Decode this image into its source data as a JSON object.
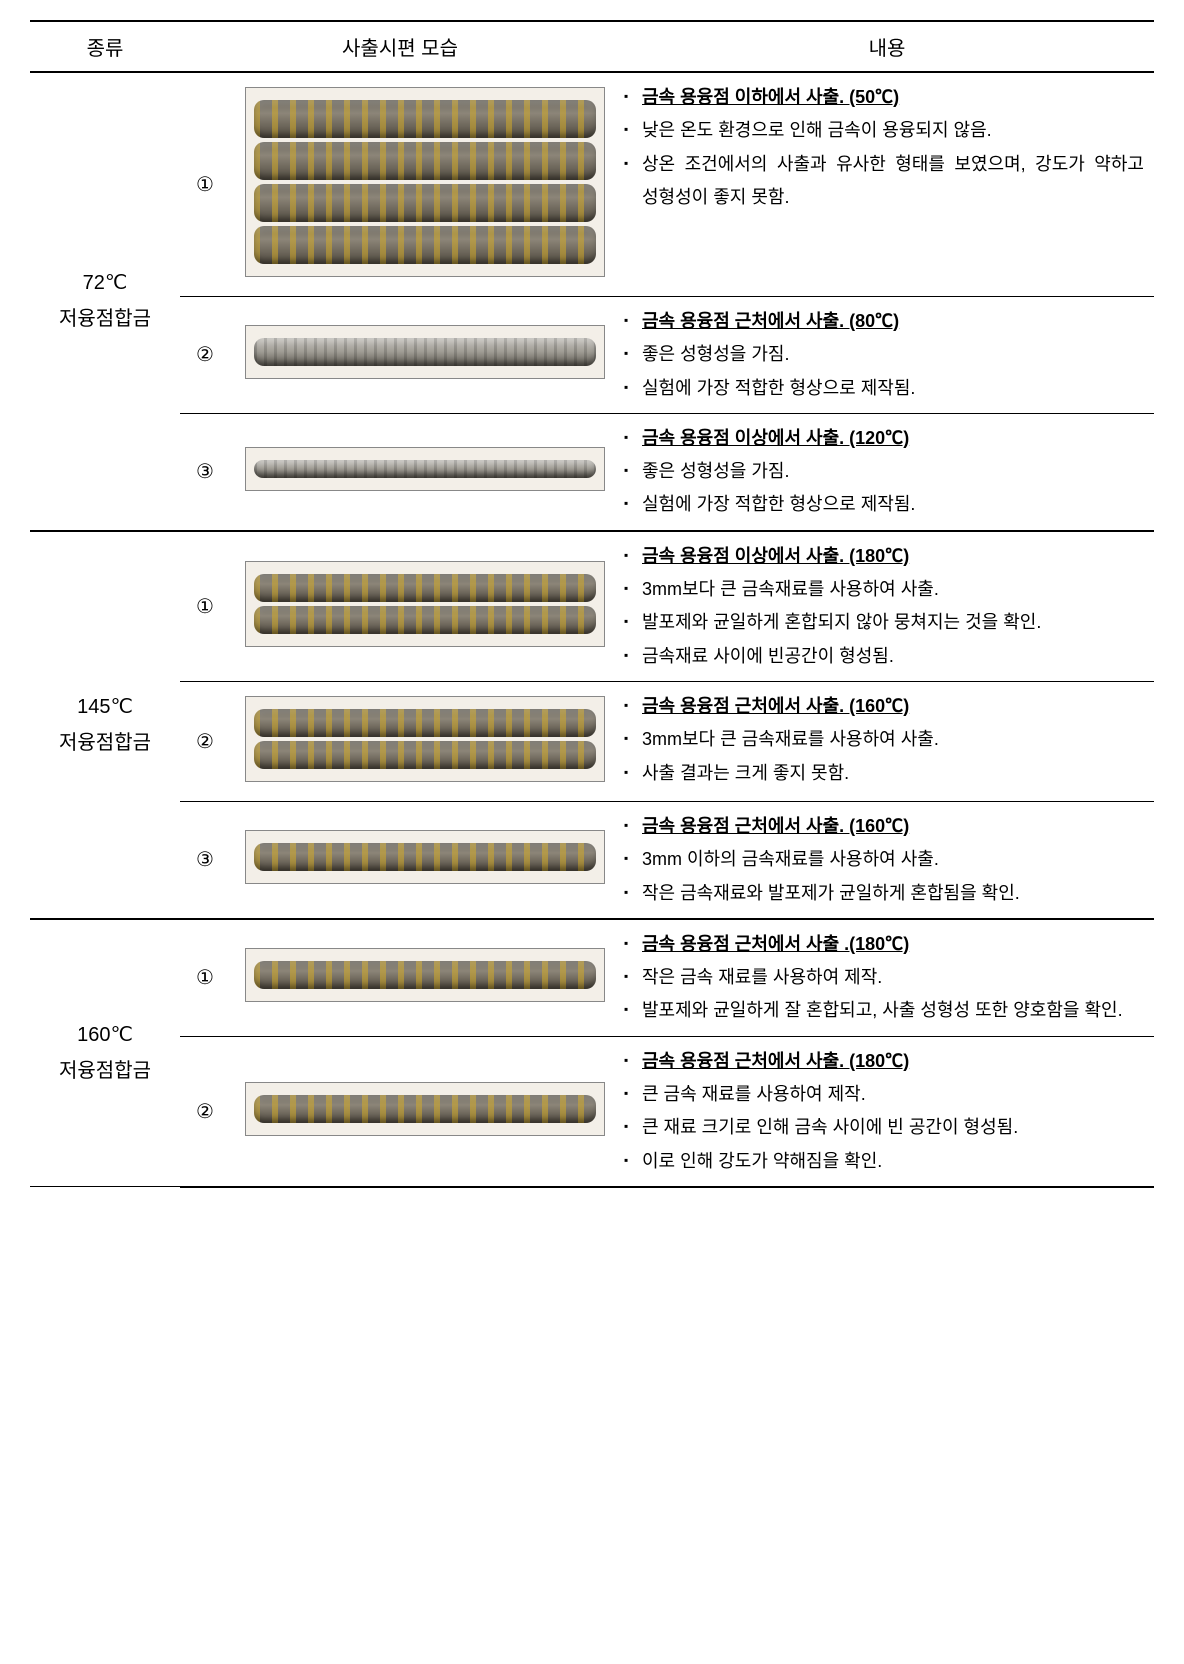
{
  "columns": {
    "c1": "종류",
    "c2c3": "사출시편 모습",
    "c4": "내용"
  },
  "groups": [
    {
      "category": "72℃\n저융점합금",
      "rows": [
        {
          "num": "①",
          "spec_style": "rough4",
          "desc": [
            {
              "type": "head",
              "text": "금속 용융점 이하에서 사출. (50℃)"
            },
            {
              "type": "plain",
              "text": "낮은 온도 환경으로 인해 금속이 용융되지 않음."
            },
            {
              "type": "plain",
              "text": "상온 조건에서의 사출과 유사한 형태를 보였으며, 강도가 약하고 성형성이 좋지 못함."
            }
          ]
        },
        {
          "num": "②",
          "spec_style": "silver1",
          "desc": [
            {
              "type": "head",
              "text": "금속 용융점 근처에서 사출. (80℃)"
            },
            {
              "type": "plain",
              "text": "좋은 성형성을 가짐."
            },
            {
              "type": "plain",
              "text": "실험에 가장 적합한 형상으로 제작됨."
            }
          ]
        },
        {
          "num": "③",
          "spec_style": "silver1thin",
          "desc": [
            {
              "type": "head",
              "text": "금속 용융점 이상에서 사출. (120℃)"
            },
            {
              "type": "plain",
              "text": "좋은 성형성을 가짐."
            },
            {
              "type": "plain",
              "text": "실험에 가장 적합한 형상으로 제작됨."
            }
          ]
        }
      ]
    },
    {
      "category": "145℃\n저융점합금",
      "rows": [
        {
          "num": "①",
          "spec_style": "mixed2",
          "desc": [
            {
              "type": "head",
              "text": "금속 용융점 이상에서 사출. (180℃)"
            },
            {
              "type": "plain",
              "text": "3mm보다 큰 금속재료를 사용하여 사출."
            },
            {
              "type": "plain",
              "text": "발포제와 균일하게 혼합되지 않아 뭉쳐지는 것을 확인."
            },
            {
              "type": "plain",
              "text": "금속재료 사이에 빈공간이 형성됨."
            }
          ]
        },
        {
          "num": "②",
          "spec_style": "mixed2",
          "desc": [
            {
              "type": "head",
              "text": "금속 용융점 근처에서 사출. (160℃)"
            },
            {
              "type": "plain",
              "text": "3mm보다 큰 금속재료를 사용하여 사출."
            },
            {
              "type": "plain",
              "text": "사출 결과는 크게 좋지 못함."
            }
          ]
        },
        {
          "num": "③",
          "spec_style": "mixed1",
          "desc": [
            {
              "type": "head",
              "text": "금속 용융점 근처에서 사출. (160℃)"
            },
            {
              "type": "plain",
              "text": "3mm 이하의 금속재료를 사용하여 사출."
            },
            {
              "type": "plain",
              "text": "작은 금속재료와 발포제가 균일하게 혼합됨을 확인."
            }
          ]
        }
      ]
    },
    {
      "category": "160℃\n저융점합금",
      "rows": [
        {
          "num": "①",
          "spec_style": "mixed1",
          "desc": [
            {
              "type": "head",
              "text": "금속 용융점 근처에서 사출 .(180℃)"
            },
            {
              "type": "plain",
              "text": "작은 금속 재료를 사용하여 제작."
            },
            {
              "type": "plain",
              "text": "발포제와 균일하게 잘 혼합되고, 사출 성형성 또한 양호함을 확인."
            }
          ]
        },
        {
          "num": "②",
          "spec_style": "mixed1void",
          "desc": [
            {
              "type": "head",
              "text": "금속 용융점 근처에서 사출. (180℃)"
            },
            {
              "type": "plain",
              "text": "큰 금속 재료를 사용하여 제작."
            },
            {
              "type": "plain",
              "text": "큰 재료 크기로 인해 금속 사이에 빈 공간이 형성됨."
            },
            {
              "type": "plain",
              "text": "이로 인해 강도가 약해짐을 확인."
            }
          ]
        }
      ]
    }
  ]
}
